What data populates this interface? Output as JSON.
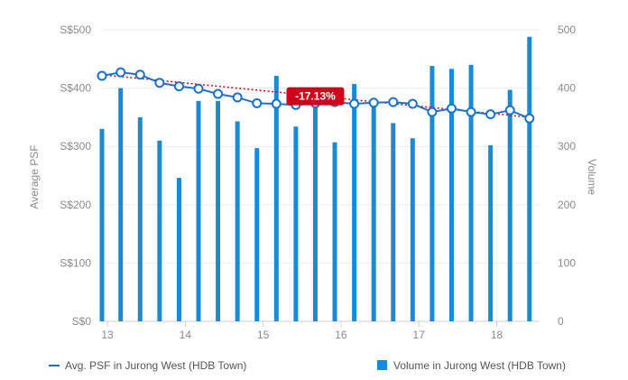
{
  "chart_data": {
    "type": "bar",
    "x_tick_labels": [
      "13",
      "14",
      "15",
      "16",
      "17",
      "18"
    ],
    "y_left": {
      "label": "Average PSF",
      "ticks": [
        "S$0",
        "S$100",
        "S$200",
        "S$300",
        "S$400",
        "S$500"
      ],
      "range": [
        0,
        500
      ]
    },
    "y_right": {
      "label": "Volume",
      "ticks": [
        "0",
        "100",
        "200",
        "300",
        "400",
        "500"
      ],
      "range": [
        0,
        500
      ]
    },
    "x_range": [
      12.93,
      18.55
    ],
    "grid": true,
    "legend_placement": "bottom",
    "series": [
      {
        "name": "Avg. PSF in Jurong West (HDB Town)",
        "type": "line",
        "color": "#1a73c9",
        "x": [
          12.93,
          13.17,
          13.42,
          13.67,
          13.92,
          14.17,
          14.42,
          14.67,
          14.92,
          15.17,
          15.42,
          15.67,
          15.92,
          16.17,
          16.42,
          16.67,
          16.92,
          17.17,
          17.42,
          17.67,
          17.92,
          18.17,
          18.42
        ],
        "values": [
          421,
          427,
          423,
          409,
          403,
          399,
          390,
          384,
          374,
          373,
          371,
          374,
          376,
          373,
          375,
          376,
          373,
          359,
          365,
          359,
          355,
          362,
          348
        ]
      },
      {
        "name": "Volume in Jurong West (HDB Town)",
        "type": "bar",
        "color": "#1a8ad4",
        "x": [
          12.93,
          13.17,
          13.42,
          13.67,
          13.92,
          14.17,
          14.42,
          14.67,
          14.92,
          15.17,
          15.42,
          15.67,
          15.92,
          16.17,
          16.42,
          16.67,
          16.92,
          17.17,
          17.42,
          17.67,
          17.92,
          18.17,
          18.42
        ],
        "values": [
          330,
          400,
          350,
          310,
          246,
          378,
          378,
          343,
          297,
          421,
          334,
          380,
          307,
          407,
          380,
          340,
          314,
          438,
          433,
          440,
          302,
          397,
          488
        ]
      }
    ],
    "trendline": {
      "color": "#d0021b",
      "start": [
        12.93,
        423
      ],
      "end": [
        18.42,
        350
      ]
    },
    "annotation": {
      "text": "-17.13%",
      "color": "#d0021b",
      "x": 15.67,
      "y": 386
    }
  }
}
